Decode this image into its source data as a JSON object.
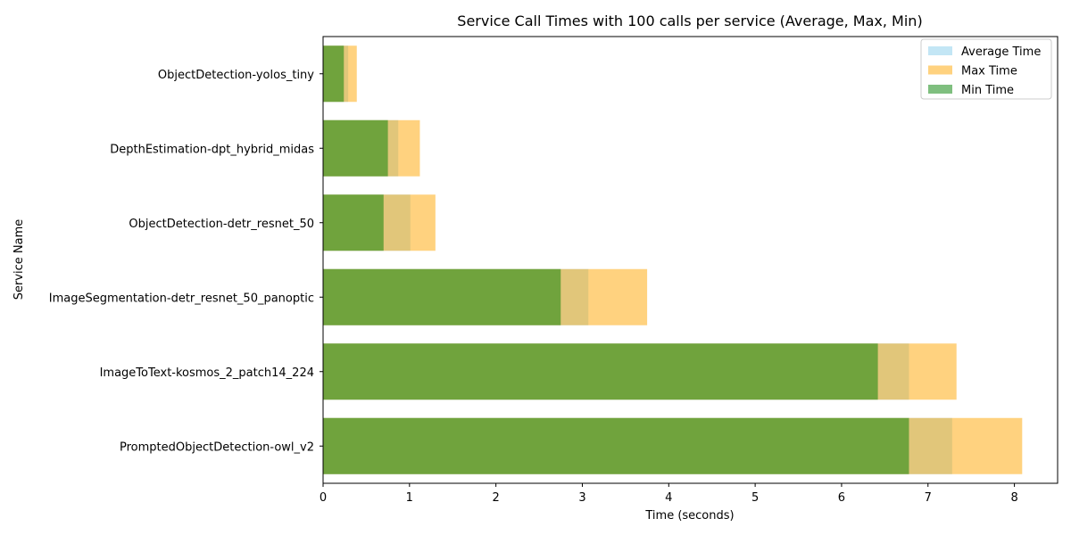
{
  "chart_data": {
    "type": "bar",
    "orientation": "horizontal",
    "title": "Service Call Times with 100 calls per service (Average, Max, Min)",
    "xlabel": "Time (seconds)",
    "ylabel": "Service Name",
    "xlim": [
      0,
      8.5
    ],
    "xticks": [
      "0",
      "1",
      "2",
      "3",
      "4",
      "5",
      "6",
      "7",
      "8"
    ],
    "categories": [
      "PromptedObjectDetection-owl_v2",
      "ImageToText-kosmos_2_patch14_224",
      "ImageSegmentation-detr_resnet_50_panoptic",
      "ObjectDetection-detr_resnet_50",
      "DepthEstimation-dpt_hybrid_midas",
      "ObjectDetection-yolos_tiny"
    ],
    "series": [
      {
        "name": "Average Time",
        "color": "#87ceeb",
        "values": [
          7.28,
          6.78,
          3.07,
          1.01,
          0.87,
          0.29
        ]
      },
      {
        "name": "Max Time",
        "color": "#ffa500",
        "values": [
          8.09,
          7.33,
          3.75,
          1.3,
          1.12,
          0.39
        ]
      },
      {
        "name": "Min Time",
        "color": "#008000",
        "values": [
          6.78,
          6.42,
          2.75,
          0.7,
          0.75,
          0.24
        ]
      }
    ],
    "legend": "top-right",
    "grid": false
  }
}
